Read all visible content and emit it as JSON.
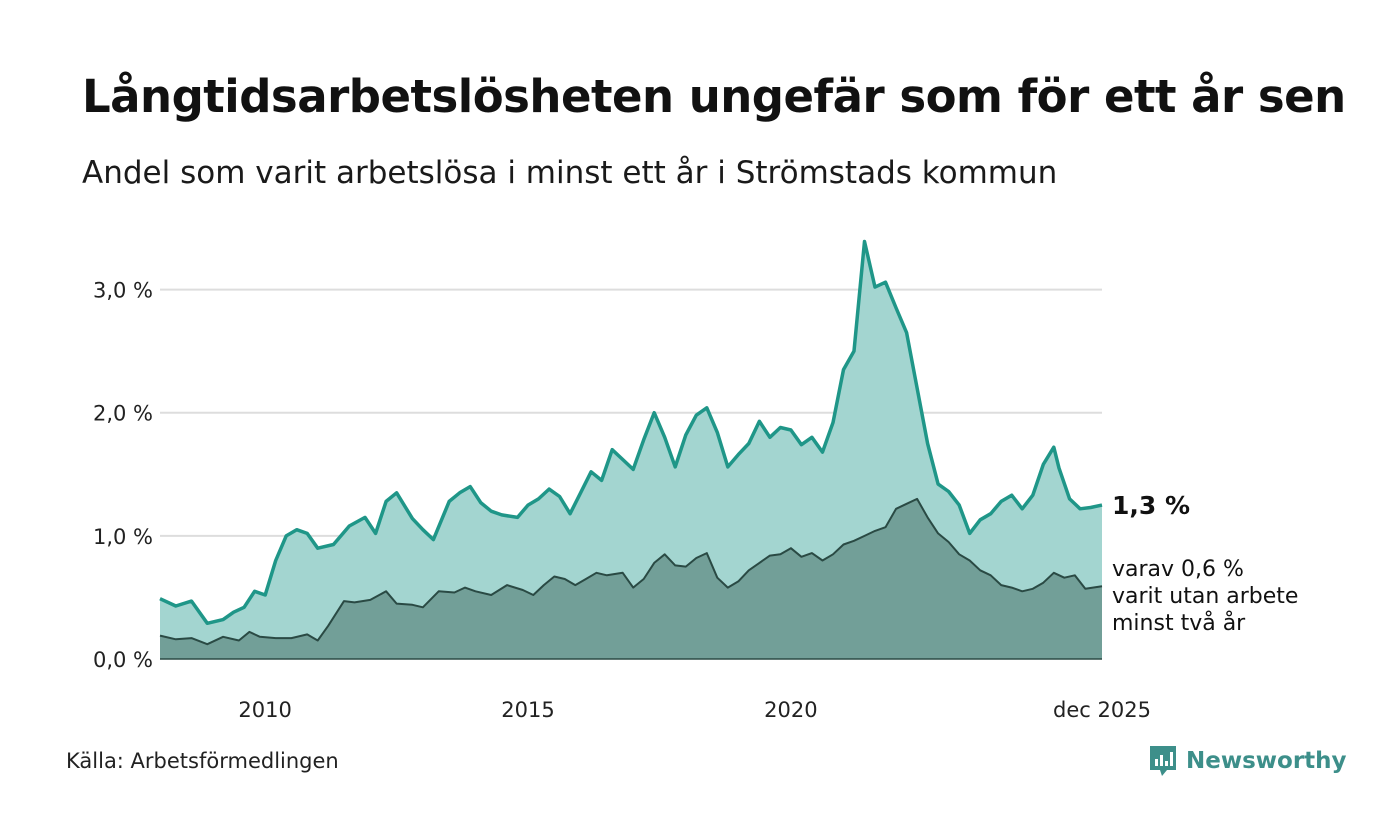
{
  "title": "Långtidsarbetslösheten ungefär som för ett år sen",
  "subtitle": "Andel som varit arbetslösa i minst ett år i Strömstads kommun",
  "source": "Källa: Arbetsförmedlingen",
  "brand": {
    "name": "Newsworthy",
    "icon": "newsworthy-chart-bubble-icon"
  },
  "colors": {
    "total_line": "#1f9688",
    "total_fill": "#a3d5d0",
    "sub_line": "#2a4a44",
    "sub_fill": "#729f98",
    "grid": "#dddddd",
    "brand": "#3d8f8a"
  },
  "annotations": {
    "total_value": "1,3 %",
    "sub_line1": "varav 0,6 %",
    "sub_line2": "varit utan arbete",
    "sub_line3": "minst två år"
  },
  "chart_data": {
    "type": "area",
    "title": "Långtidsarbetslösheten ungefär som för ett år sen",
    "subtitle": "Andel som varit arbetslösa i minst ett år i Strömstads kommun",
    "x_range": [
      2008.0,
      2025.917
    ],
    "ylim": [
      0,
      3.5
    ],
    "yticks": [
      0,
      1,
      2,
      3
    ],
    "ytick_labels": [
      "0,0 %",
      "1,0 %",
      "2,0 %",
      "3,0 %"
    ],
    "xticks": [
      2010,
      2015,
      2020,
      2025.917
    ],
    "xtick_labels": [
      "2010",
      "2015",
      "2020",
      "dec 2025"
    ],
    "grid": true,
    "series": [
      {
        "name": "Andel arbetslösa minst ett år",
        "points": [
          [
            2008.0,
            0.49
          ],
          [
            2008.3,
            0.43
          ],
          [
            2008.6,
            0.47
          ],
          [
            2008.9,
            0.29
          ],
          [
            2009.2,
            0.32
          ],
          [
            2009.4,
            0.38
          ],
          [
            2009.6,
            0.42
          ],
          [
            2009.8,
            0.55
          ],
          [
            2010.0,
            0.52
          ],
          [
            2010.2,
            0.8
          ],
          [
            2010.4,
            1.0
          ],
          [
            2010.6,
            1.05
          ],
          [
            2010.8,
            1.02
          ],
          [
            2011.0,
            0.9
          ],
          [
            2011.3,
            0.93
          ],
          [
            2011.6,
            1.08
          ],
          [
            2011.9,
            1.15
          ],
          [
            2012.1,
            1.02
          ],
          [
            2012.3,
            1.28
          ],
          [
            2012.5,
            1.35
          ],
          [
            2012.8,
            1.14
          ],
          [
            2013.0,
            1.05
          ],
          [
            2013.2,
            0.97
          ],
          [
            2013.5,
            1.28
          ],
          [
            2013.7,
            1.35
          ],
          [
            2013.9,
            1.4
          ],
          [
            2014.1,
            1.27
          ],
          [
            2014.3,
            1.2
          ],
          [
            2014.5,
            1.17
          ],
          [
            2014.8,
            1.15
          ],
          [
            2015.0,
            1.25
          ],
          [
            2015.2,
            1.3
          ],
          [
            2015.4,
            1.38
          ],
          [
            2015.6,
            1.32
          ],
          [
            2015.8,
            1.18
          ],
          [
            2016.0,
            1.35
          ],
          [
            2016.2,
            1.52
          ],
          [
            2016.4,
            1.45
          ],
          [
            2016.6,
            1.7
          ],
          [
            2016.8,
            1.62
          ],
          [
            2017.0,
            1.54
          ],
          [
            2017.2,
            1.78
          ],
          [
            2017.4,
            2.0
          ],
          [
            2017.6,
            1.8
          ],
          [
            2017.8,
            1.56
          ],
          [
            2018.0,
            1.82
          ],
          [
            2018.2,
            1.98
          ],
          [
            2018.4,
            2.04
          ],
          [
            2018.6,
            1.84
          ],
          [
            2018.8,
            1.56
          ],
          [
            2019.0,
            1.66
          ],
          [
            2019.2,
            1.75
          ],
          [
            2019.4,
            1.93
          ],
          [
            2019.6,
            1.8
          ],
          [
            2019.8,
            1.88
          ],
          [
            2020.0,
            1.86
          ],
          [
            2020.2,
            1.74
          ],
          [
            2020.4,
            1.8
          ],
          [
            2020.6,
            1.68
          ],
          [
            2020.8,
            1.92
          ],
          [
            2021.0,
            2.35
          ],
          [
            2021.2,
            2.5
          ],
          [
            2021.4,
            3.39
          ],
          [
            2021.6,
            3.02
          ],
          [
            2021.8,
            3.06
          ],
          [
            2022.0,
            2.85
          ],
          [
            2022.2,
            2.65
          ],
          [
            2022.4,
            2.2
          ],
          [
            2022.6,
            1.75
          ],
          [
            2022.8,
            1.42
          ],
          [
            2023.0,
            1.36
          ],
          [
            2023.2,
            1.25
          ],
          [
            2023.4,
            1.02
          ],
          [
            2023.6,
            1.13
          ],
          [
            2023.8,
            1.18
          ],
          [
            2024.0,
            1.28
          ],
          [
            2024.2,
            1.33
          ],
          [
            2024.4,
            1.22
          ],
          [
            2024.6,
            1.33
          ],
          [
            2024.8,
            1.58
          ],
          [
            2025.0,
            1.72
          ],
          [
            2025.1,
            1.55
          ],
          [
            2025.3,
            1.3
          ],
          [
            2025.5,
            1.22
          ],
          [
            2025.7,
            1.23
          ],
          [
            2025.917,
            1.25
          ]
        ]
      },
      {
        "name": "varav utan arbete minst två år",
        "points": [
          [
            2008.0,
            0.19
          ],
          [
            2008.3,
            0.16
          ],
          [
            2008.6,
            0.17
          ],
          [
            2008.9,
            0.12
          ],
          [
            2009.2,
            0.18
          ],
          [
            2009.5,
            0.15
          ],
          [
            2009.7,
            0.22
          ],
          [
            2009.9,
            0.18
          ],
          [
            2010.2,
            0.17
          ],
          [
            2010.5,
            0.17
          ],
          [
            2010.8,
            0.2
          ],
          [
            2011.0,
            0.15
          ],
          [
            2011.2,
            0.27
          ],
          [
            2011.5,
            0.47
          ],
          [
            2011.7,
            0.46
          ],
          [
            2012.0,
            0.48
          ],
          [
            2012.3,
            0.55
          ],
          [
            2012.5,
            0.45
          ],
          [
            2012.8,
            0.44
          ],
          [
            2013.0,
            0.42
          ],
          [
            2013.3,
            0.55
          ],
          [
            2013.6,
            0.54
          ],
          [
            2013.8,
            0.58
          ],
          [
            2014.0,
            0.55
          ],
          [
            2014.3,
            0.52
          ],
          [
            2014.6,
            0.6
          ],
          [
            2014.9,
            0.56
          ],
          [
            2015.1,
            0.52
          ],
          [
            2015.3,
            0.6
          ],
          [
            2015.5,
            0.67
          ],
          [
            2015.7,
            0.65
          ],
          [
            2015.9,
            0.6
          ],
          [
            2016.1,
            0.65
          ],
          [
            2016.3,
            0.7
          ],
          [
            2016.5,
            0.68
          ],
          [
            2016.8,
            0.7
          ],
          [
            2017.0,
            0.58
          ],
          [
            2017.2,
            0.65
          ],
          [
            2017.4,
            0.78
          ],
          [
            2017.6,
            0.85
          ],
          [
            2017.8,
            0.76
          ],
          [
            2018.0,
            0.75
          ],
          [
            2018.2,
            0.82
          ],
          [
            2018.4,
            0.86
          ],
          [
            2018.6,
            0.66
          ],
          [
            2018.8,
            0.58
          ],
          [
            2019.0,
            0.63
          ],
          [
            2019.2,
            0.72
          ],
          [
            2019.4,
            0.78
          ],
          [
            2019.6,
            0.84
          ],
          [
            2019.8,
            0.85
          ],
          [
            2020.0,
            0.9
          ],
          [
            2020.2,
            0.83
          ],
          [
            2020.4,
            0.86
          ],
          [
            2020.6,
            0.8
          ],
          [
            2020.8,
            0.85
          ],
          [
            2021.0,
            0.93
          ],
          [
            2021.2,
            0.96
          ],
          [
            2021.4,
            1.0
          ],
          [
            2021.6,
            1.04
          ],
          [
            2021.8,
            1.07
          ],
          [
            2022.0,
            1.22
          ],
          [
            2022.2,
            1.26
          ],
          [
            2022.4,
            1.3
          ],
          [
            2022.6,
            1.15
          ],
          [
            2022.8,
            1.02
          ],
          [
            2023.0,
            0.95
          ],
          [
            2023.2,
            0.85
          ],
          [
            2023.4,
            0.8
          ],
          [
            2023.6,
            0.72
          ],
          [
            2023.8,
            0.68
          ],
          [
            2024.0,
            0.6
          ],
          [
            2024.2,
            0.58
          ],
          [
            2024.4,
            0.55
          ],
          [
            2024.6,
            0.57
          ],
          [
            2024.8,
            0.62
          ],
          [
            2025.0,
            0.7
          ],
          [
            2025.2,
            0.66
          ],
          [
            2025.4,
            0.68
          ],
          [
            2025.6,
            0.57
          ],
          [
            2025.917,
            0.59
          ]
        ]
      }
    ]
  }
}
